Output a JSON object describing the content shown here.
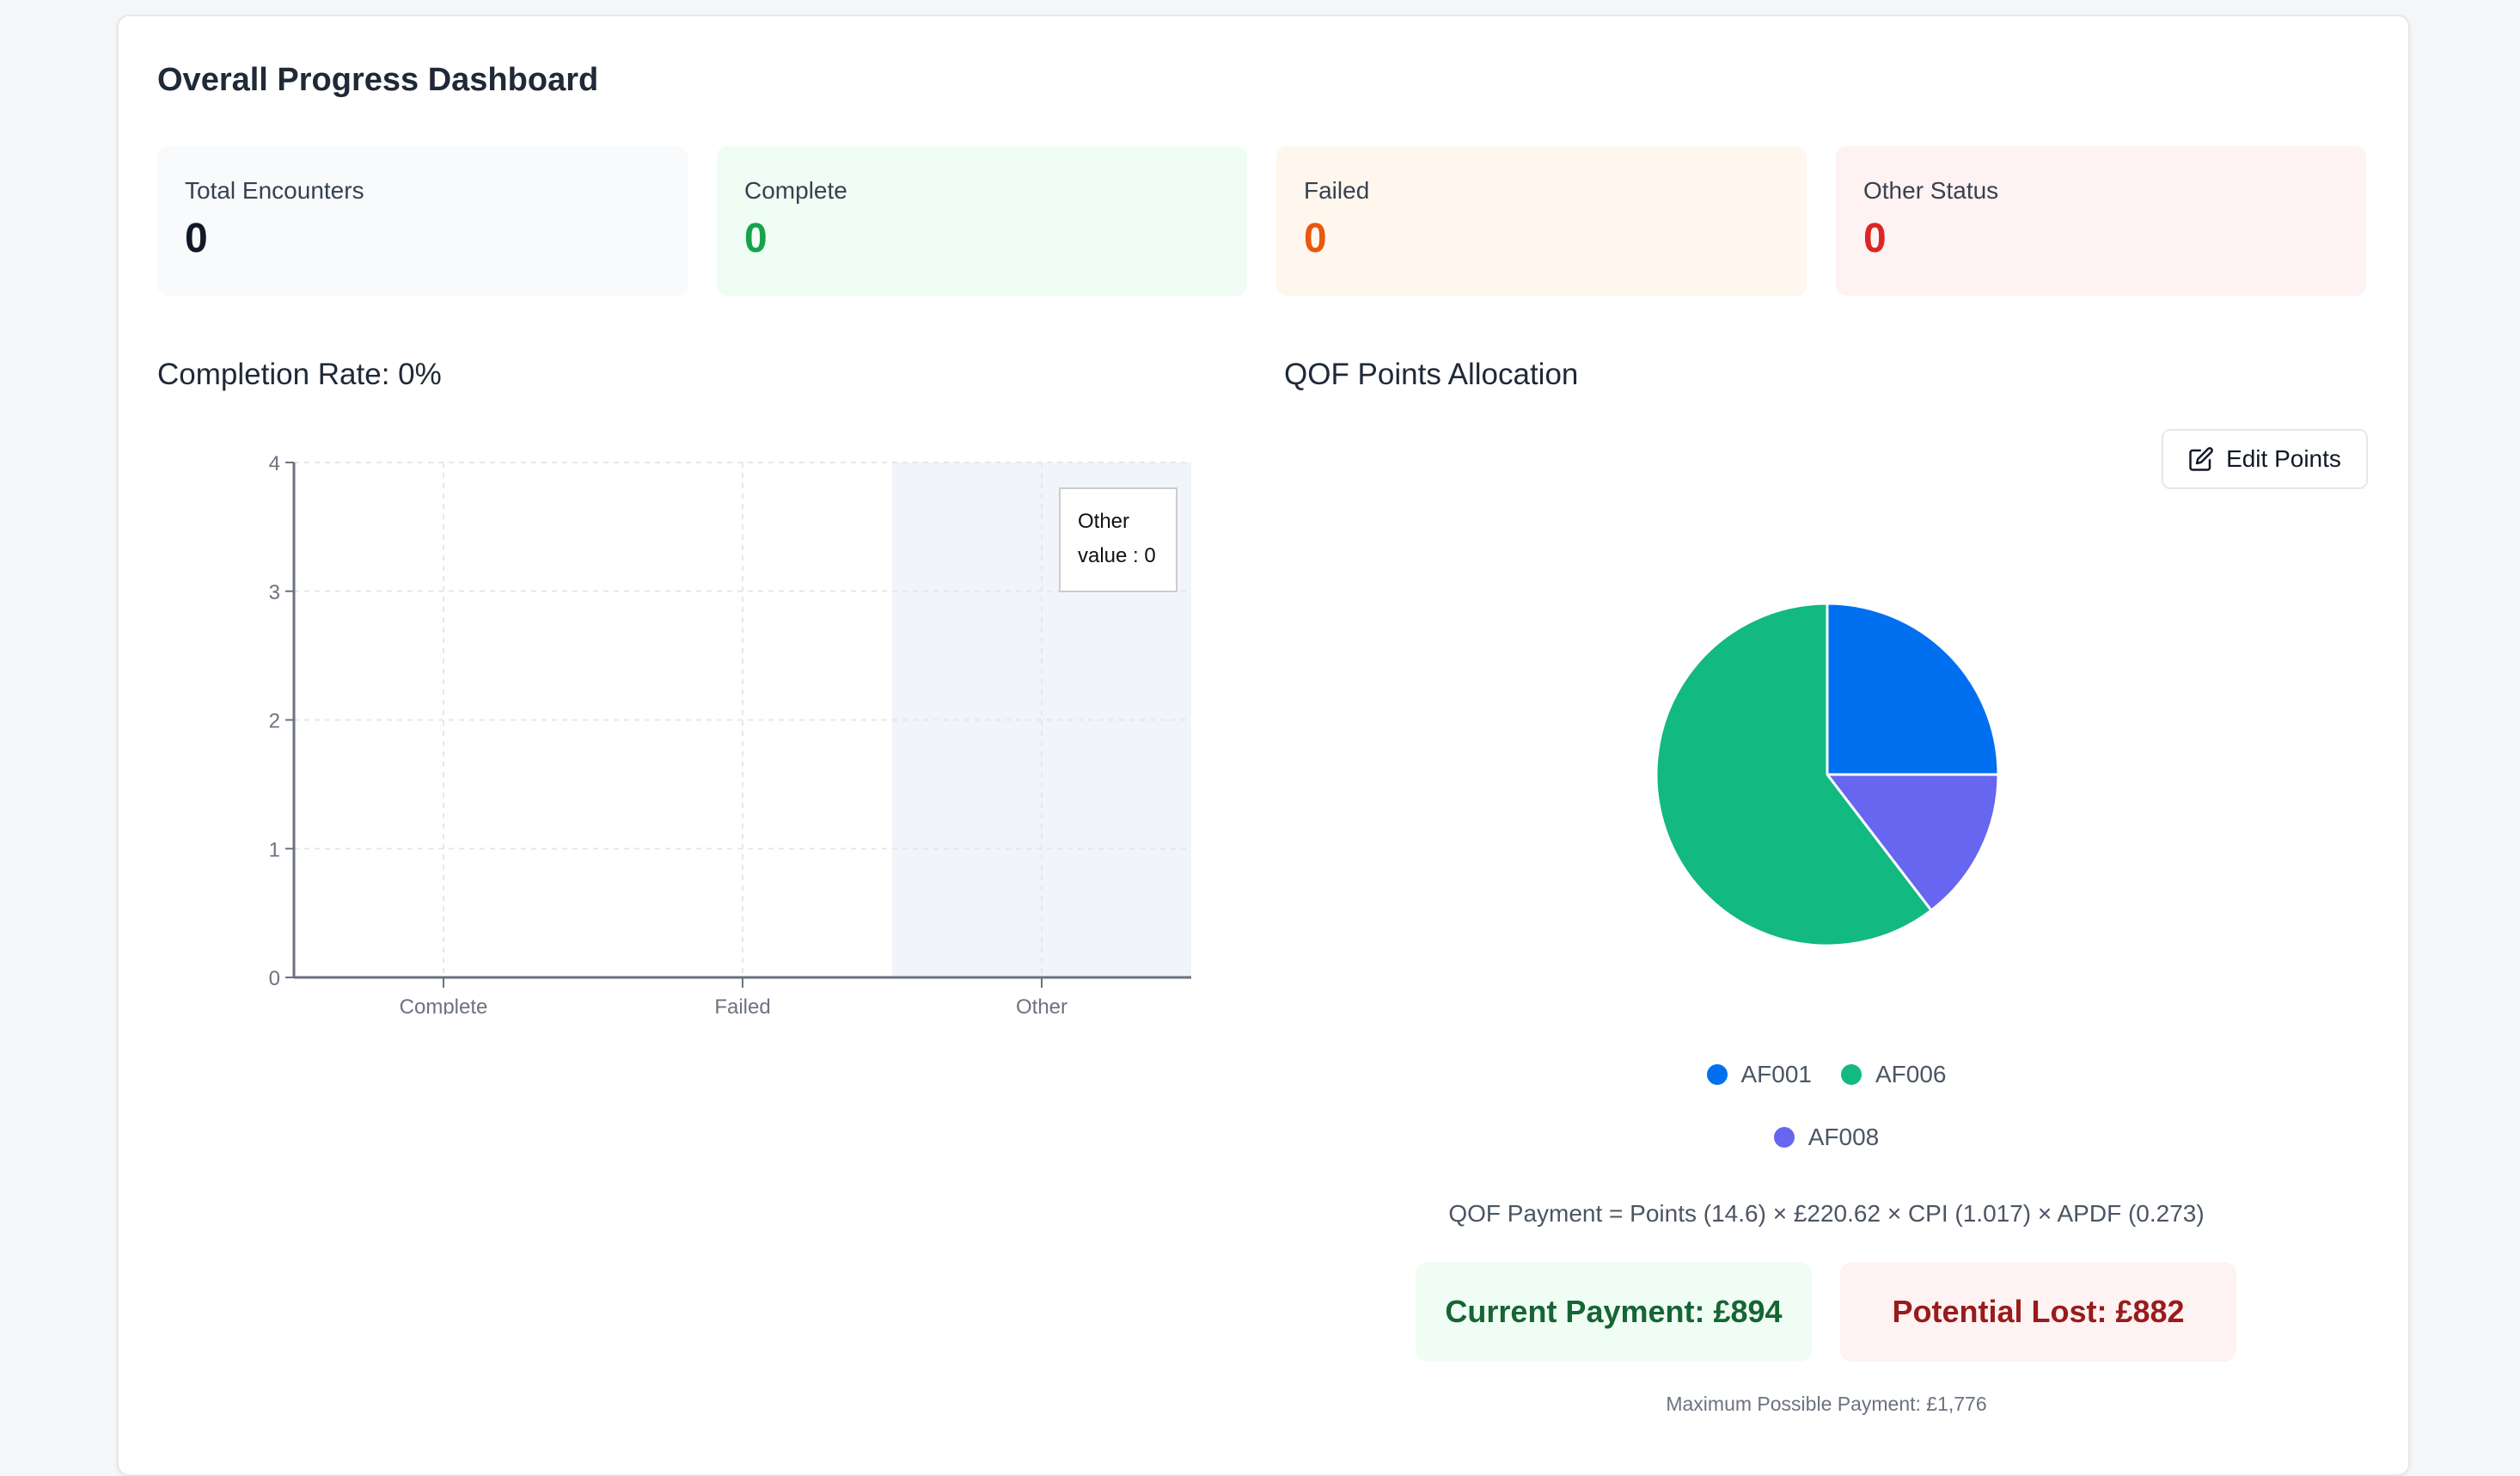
{
  "header": {
    "title": "Overall Progress Dashboard"
  },
  "stats": [
    {
      "label": "Total Encounters",
      "value": "0",
      "bg": "#f8fafc",
      "color": "#111827"
    },
    {
      "label": "Complete",
      "value": "0",
      "bg": "#f0fdf4",
      "color": "#16a34a"
    },
    {
      "label": "Failed",
      "value": "0",
      "bg": "#fff7ed",
      "color": "#ea580c"
    },
    {
      "label": "Other Status",
      "value": "0",
      "bg": "#fef2f2",
      "color": "#dc2626"
    }
  ],
  "completion": {
    "title": "Completion Rate: 0%"
  },
  "qof": {
    "title": "QOF Points Allocation",
    "edit_label": "Edit Points",
    "edit_icon": "edit-icon",
    "formula": "QOF Payment = Points (14.6) × £220.62 × CPI (1.017) × APDF (0.273)",
    "current": "Current Payment: £894",
    "lost": "Potential Lost: £882",
    "max": "Maximum Possible Payment: £1,776"
  },
  "chart_data": [
    {
      "type": "bar",
      "categories": [
        "Complete",
        "Failed",
        "Other"
      ],
      "values": [
        0,
        0,
        0
      ],
      "ylim": [
        0,
        4
      ],
      "yticks": [
        "0",
        "1",
        "2",
        "3",
        "4"
      ],
      "grid": true,
      "tooltip": {
        "category": "Other",
        "text": "value : 0"
      },
      "highlight_color": "#f1f4f9"
    },
    {
      "type": "pie",
      "labels": [
        "AF001",
        "AF006",
        "AF008"
      ],
      "values": [
        25,
        60.4,
        14.6
      ],
      "colors": [
        "#0070f0",
        "#12b981",
        "#6666f0"
      ],
      "legend": "bottom"
    }
  ]
}
